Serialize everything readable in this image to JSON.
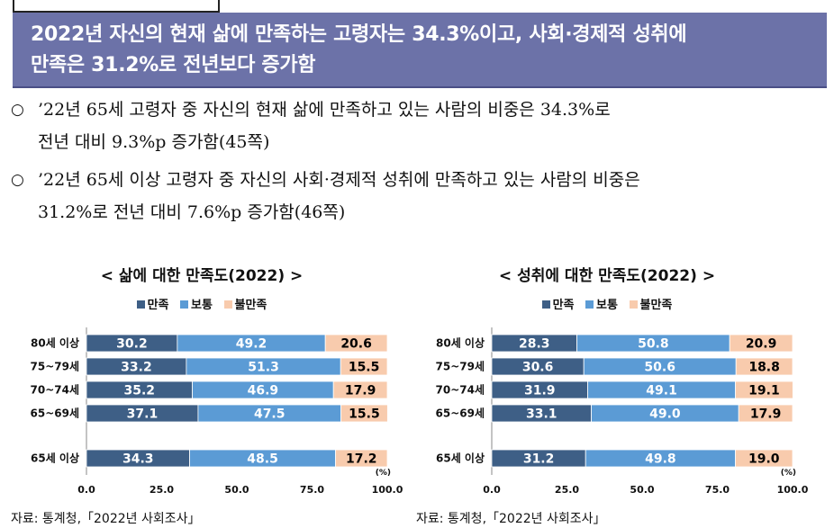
{
  "banner": {
    "line1": "2022년 자신의 현재 삶에 만족하는 고령자는 34.3%이고, 사회·경제적 성취에",
    "line2": "만족은 31.2%로 전년보다 증가함"
  },
  "bullets": [
    {
      "mark": "○",
      "line1": "’22년 65세 고령자 중 자신의 현재 삶에 만족하고 있는 사람의 비중은 34.3%로",
      "line2": "전년 대비 9.3%p 증가함(45쪽)"
    },
    {
      "mark": "○",
      "line1": "’22년 65세 이상 고령자 중 자신의 사회·경제적 성취에 만족하고 있는 사람의 비중은",
      "line2": "31.2%로 전년 대비 7.6%p 증가함(46쪽)"
    }
  ],
  "colors": {
    "satisfied": "#3e5f86",
    "normal": "#5b9bd5",
    "dissatisfied": "#f8cbad"
  },
  "legend": [
    "만족",
    "보통",
    "불만족"
  ],
  "chart_data": [
    {
      "type": "bar",
      "orientation": "horizontal-stacked",
      "title": "< 삶에 대한 만족도(2022) >",
      "categories": [
        "80세 이상",
        "75~79세",
        "70~74세",
        "65~69세",
        "65세 이상"
      ],
      "series": [
        {
          "name": "만족",
          "values": [
            30.2,
            33.2,
            35.2,
            37.1,
            34.3
          ]
        },
        {
          "name": "보통",
          "values": [
            49.2,
            51.3,
            46.9,
            47.5,
            48.5
          ]
        },
        {
          "name": "불만족",
          "values": [
            20.6,
            15.5,
            17.9,
            15.5,
            17.2
          ]
        }
      ],
      "xlim": [
        0,
        100
      ],
      "xticks": [
        "0.0",
        "25.0",
        "50.0",
        "75.0",
        "100.0"
      ],
      "unit": "(%)"
    },
    {
      "type": "bar",
      "orientation": "horizontal-stacked",
      "title": "< 성취에 대한 만족도(2022) >",
      "categories": [
        "80세 이상",
        "75~79세",
        "70~74세",
        "65~69세",
        "65세 이상"
      ],
      "series": [
        {
          "name": "만족",
          "values": [
            28.3,
            30.6,
            31.9,
            33.1,
            31.2
          ]
        },
        {
          "name": "보통",
          "values": [
            50.8,
            50.6,
            49.1,
            49.0,
            49.8
          ]
        },
        {
          "name": "불만족",
          "values": [
            20.9,
            18.8,
            19.1,
            17.9,
            19.0
          ]
        }
      ],
      "xlim": [
        0,
        100
      ],
      "xticks": [
        "0.0",
        "25.0",
        "50.0",
        "75.0",
        "100.0"
      ],
      "unit": "(%)"
    }
  ],
  "source": [
    "자료: 통계청,「2022년 사회조사」",
    "자료: 통계청,「2022년 사회조사」"
  ]
}
